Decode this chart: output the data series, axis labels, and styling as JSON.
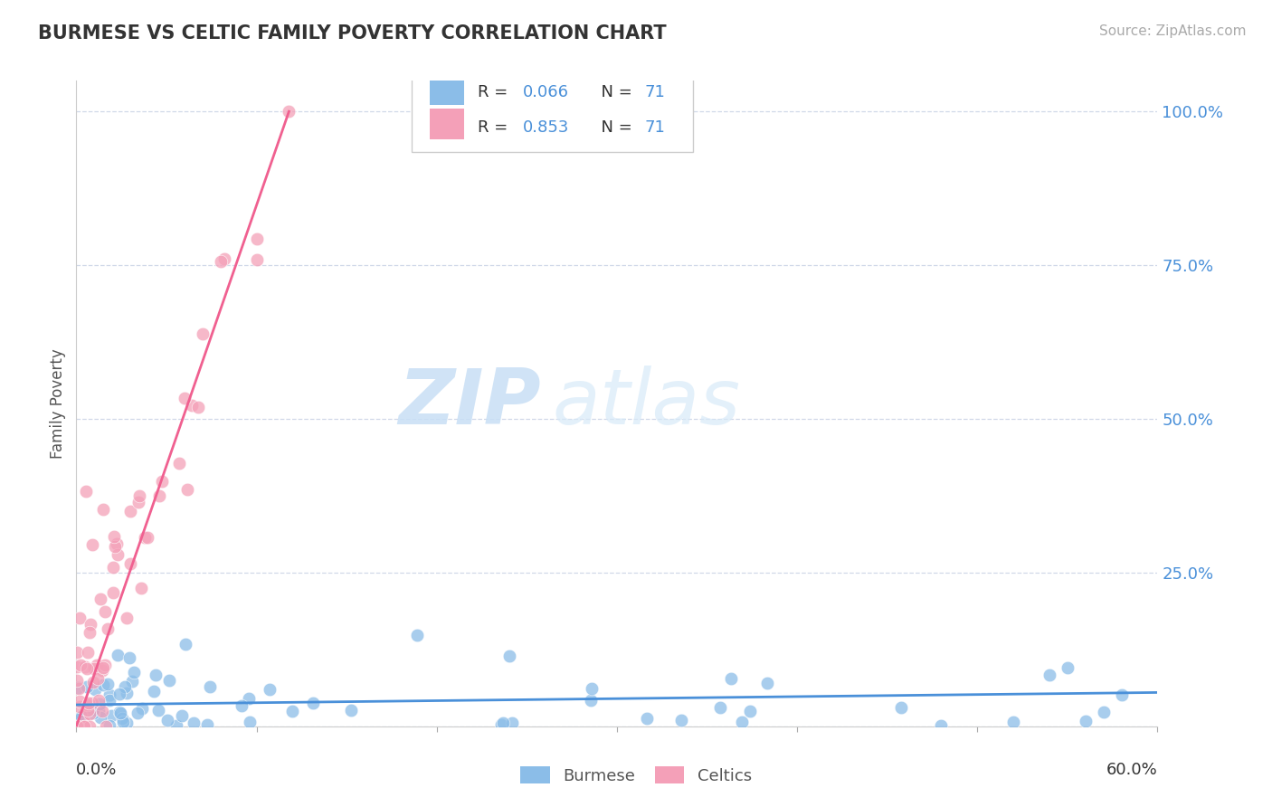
{
  "title": "BURMESE VS CELTIC FAMILY POVERTY CORRELATION CHART",
  "source": "Source: ZipAtlas.com",
  "ylabel": "Family Poverty",
  "burmese_color": "#8bbde8",
  "celtic_color": "#f4a0b8",
  "burmese_line_color": "#4a90d9",
  "celtic_line_color": "#f06090",
  "watermark_zip": "ZIP",
  "watermark_atlas": "atlas",
  "xlim": [
    0.0,
    0.6
  ],
  "ylim": [
    0.0,
    1.05
  ],
  "yticks": [
    0.0,
    0.25,
    0.5,
    0.75,
    1.0
  ],
  "ytick_labels": [
    "",
    "25.0%",
    "50.0%",
    "75.0%",
    "100.0%"
  ],
  "burmese_R": "0.066",
  "burmese_N": "71",
  "celtic_R": "0.853",
  "celtic_N": "71",
  "celtic_line_x0": 0.0,
  "celtic_line_y0": 0.0,
  "celtic_line_x1": 0.118,
  "celtic_line_y1": 1.0,
  "burmese_line_x0": 0.0,
  "burmese_line_y0": 0.035,
  "burmese_line_x1": 0.6,
  "burmese_line_y1": 0.055
}
